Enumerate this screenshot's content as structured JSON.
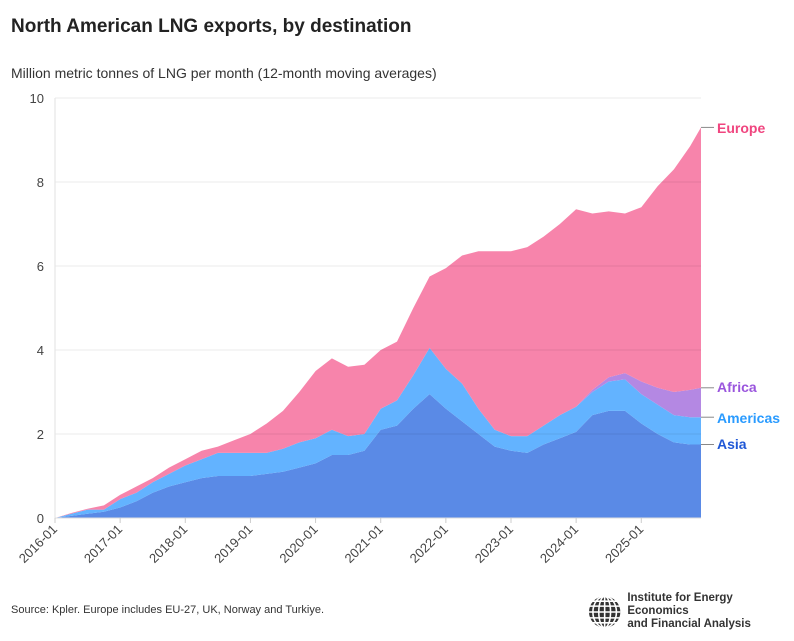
{
  "title": "North American LNG exports, by destination",
  "subtitle": "Million metric tonnes of LNG per month (12-month moving averages)",
  "source": "Source: Kpler. Europe includes EU-27, UK, Norway and Turkiye.",
  "logo": {
    "line1": "Institute for Energy Economics",
    "line2": "and Financial Analysis"
  },
  "chart_data": {
    "type": "area",
    "stacked": true,
    "title": "North American LNG exports, by destination",
    "ylabel": "Million metric tonnes of LNG per month (12-month moving averages)",
    "ylim": [
      0,
      10
    ],
    "yticks": [
      0,
      2,
      4,
      6,
      8,
      10
    ],
    "xticks": [
      "2016-01",
      "2017-01",
      "2018-01",
      "2019-01",
      "2020-01",
      "2021-01",
      "2022-01",
      "2023-01",
      "2024-01",
      "2025-01"
    ],
    "grid": true,
    "legend": "direct labels at right end",
    "x": [
      "2016-01",
      "2016-04",
      "2016-07",
      "2016-10",
      "2017-01",
      "2017-04",
      "2017-07",
      "2017-10",
      "2018-01",
      "2018-04",
      "2018-07",
      "2018-10",
      "2019-01",
      "2019-04",
      "2019-07",
      "2019-10",
      "2020-01",
      "2020-04",
      "2020-07",
      "2020-10",
      "2021-01",
      "2021-04",
      "2021-07",
      "2021-10",
      "2022-01",
      "2022-04",
      "2022-07",
      "2022-10",
      "2023-01",
      "2023-04",
      "2023-07",
      "2023-10",
      "2024-01",
      "2024-04",
      "2024-07",
      "2024-10",
      "2025-01",
      "2025-04",
      "2025-07",
      "2025-10",
      "2025-12"
    ],
    "series": [
      {
        "name": "Asia",
        "color": "#5a8ae6",
        "label_color": "#1f57d6",
        "values": [
          0,
          0.05,
          0.1,
          0.15,
          0.25,
          0.4,
          0.6,
          0.75,
          0.85,
          0.95,
          1.0,
          1.0,
          1.0,
          1.05,
          1.1,
          1.2,
          1.3,
          1.5,
          1.5,
          1.6,
          2.1,
          2.2,
          2.6,
          2.95,
          2.6,
          2.3,
          2.0,
          1.7,
          1.6,
          1.55,
          1.75,
          1.9,
          2.05,
          2.45,
          2.55,
          2.55,
          2.25,
          2.0,
          1.8,
          1.75,
          1.75
        ]
      },
      {
        "name": "Americas",
        "color": "#63b3ff",
        "label_color": "#2a9bff",
        "values": [
          0,
          0.05,
          0.1,
          0.05,
          0.2,
          0.2,
          0.25,
          0.3,
          0.4,
          0.45,
          0.55,
          0.55,
          0.55,
          0.5,
          0.55,
          0.6,
          0.6,
          0.6,
          0.45,
          0.4,
          0.5,
          0.6,
          0.8,
          1.1,
          0.95,
          0.9,
          0.6,
          0.4,
          0.35,
          0.4,
          0.45,
          0.55,
          0.6,
          0.55,
          0.7,
          0.75,
          0.7,
          0.7,
          0.65,
          0.65,
          0.65
        ]
      },
      {
        "name": "Africa",
        "color": "#b488e3",
        "label_color": "#9a55dd",
        "values": [
          0,
          0,
          0,
          0,
          0,
          0,
          0,
          0,
          0,
          0,
          0,
          0,
          0,
          0,
          0,
          0,
          0,
          0,
          0,
          0,
          0,
          0,
          0,
          0,
          0,
          0,
          0,
          0,
          0,
          0,
          0,
          0,
          0,
          0.05,
          0.1,
          0.15,
          0.3,
          0.4,
          0.55,
          0.65,
          0.7
        ]
      },
      {
        "name": "Europe",
        "color": "#f784ab",
        "label_color": "#f0457f",
        "values": [
          0,
          0.02,
          0.02,
          0.1,
          0.1,
          0.15,
          0.1,
          0.15,
          0.15,
          0.2,
          0.15,
          0.3,
          0.45,
          0.7,
          0.9,
          1.2,
          1.6,
          1.7,
          1.65,
          1.65,
          1.4,
          1.4,
          1.6,
          1.7,
          2.4,
          3.05,
          3.75,
          4.25,
          4.4,
          4.5,
          4.5,
          4.55,
          4.7,
          4.2,
          3.95,
          3.8,
          4.15,
          4.8,
          5.3,
          5.8,
          6.2
        ]
      }
    ]
  }
}
